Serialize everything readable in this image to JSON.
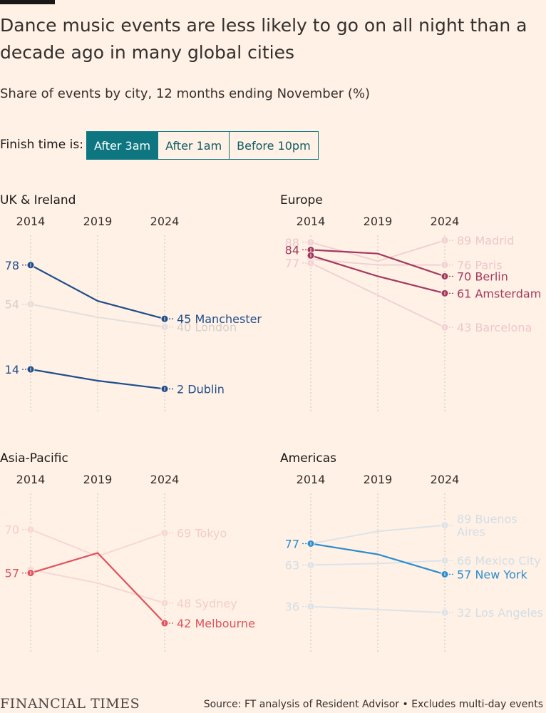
{
  "title": "Dance music events are less likely to go on all night than a decade ago in many global cities",
  "subtitle": "Share of events by city, 12 months ending November (%)",
  "filter": {
    "label": "Finish time is:",
    "options": [
      "After 3am",
      "After 1am",
      "Before 10pm"
    ],
    "selected": "After 3am"
  },
  "footer": {
    "logo": "FINANCIAL TIMES",
    "source": "Source: FT analysis of Resident Advisor • Excludes multi-day events"
  },
  "chart_data": [
    {
      "type": "line",
      "title": "UK & Ireland",
      "x": [
        "2014",
        "2019",
        "2024"
      ],
      "highlight_color": "#1f4e8c",
      "series": [
        {
          "name": "Manchester",
          "values": [
            78,
            56,
            45
          ],
          "highlighted": true,
          "start_label": "78",
          "end_label": "45 Manchester"
        },
        {
          "name": "London",
          "values": [
            54,
            46,
            40
          ],
          "highlighted": false,
          "start_label": "54",
          "end_label": "40 London"
        },
        {
          "name": "Dublin",
          "values": [
            14,
            7,
            2
          ],
          "highlighted": true,
          "start_label": "14",
          "end_label": "2 Dublin"
        }
      ]
    },
    {
      "type": "line",
      "title": "Europe",
      "x": [
        "2014",
        "2019",
        "2024"
      ],
      "highlight_color": "#a3385f",
      "series": [
        {
          "name": "Madrid",
          "values": [
            88,
            78,
            89
          ],
          "highlighted": false,
          "start_label": "88",
          "end_label": "89 Madrid"
        },
        {
          "name": "Paris",
          "values": [
            79,
            76,
            76
          ],
          "highlighted": false,
          "start_label": "",
          "end_label": "76 Paris"
        },
        {
          "name": "Berlin",
          "values": [
            84,
            82,
            70
          ],
          "highlighted": true,
          "start_label": "84",
          "end_label": "70 Berlin"
        },
        {
          "name": "Amsterdam",
          "values": [
            81,
            70,
            61
          ],
          "highlighted": true,
          "start_label": "",
          "end_label": "61 Amsterdam"
        },
        {
          "name": "Barcelona",
          "values": [
            77,
            60,
            43
          ],
          "highlighted": false,
          "start_label": "77",
          "end_label": "43 Barcelona"
        }
      ]
    },
    {
      "type": "line",
      "title": "Asia-Pacific",
      "x": [
        "2014",
        "2019",
        "2024"
      ],
      "highlight_color": "#e0525f",
      "series": [
        {
          "name": "Tokyo",
          "values": [
            70,
            62,
            69
          ],
          "highlighted": false,
          "start_label": "70",
          "end_label": "69 Tokyo"
        },
        {
          "name": "Sydney",
          "values": [
            58,
            54,
            48
          ],
          "highlighted": false,
          "start_label": "",
          "end_label": "48 Sydney"
        },
        {
          "name": "Melbourne",
          "values": [
            57,
            63,
            42
          ],
          "highlighted": true,
          "start_label": "57",
          "end_label": "42 Melbourne"
        }
      ]
    },
    {
      "type": "line",
      "title": "Americas",
      "x": [
        "2014",
        "2019",
        "2024"
      ],
      "highlight_color": "#2b8dcf",
      "series": [
        {
          "name": "Buenos Aires",
          "values": [
            77,
            85,
            89
          ],
          "highlighted": false,
          "start_label": "",
          "end_label": "89 Buenos Aires"
        },
        {
          "name": "Mexico City",
          "values": [
            63,
            64,
            66
          ],
          "highlighted": false,
          "start_label": "63",
          "end_label": "66 Mexico City"
        },
        {
          "name": "New York",
          "values": [
            77,
            70,
            57
          ],
          "highlighted": true,
          "start_label": "77",
          "end_label": "57 New York"
        },
        {
          "name": "Los Angeles",
          "values": [
            36,
            34,
            32
          ],
          "highlighted": false,
          "start_label": "36",
          "end_label": "32 Los Angeles"
        }
      ]
    }
  ]
}
